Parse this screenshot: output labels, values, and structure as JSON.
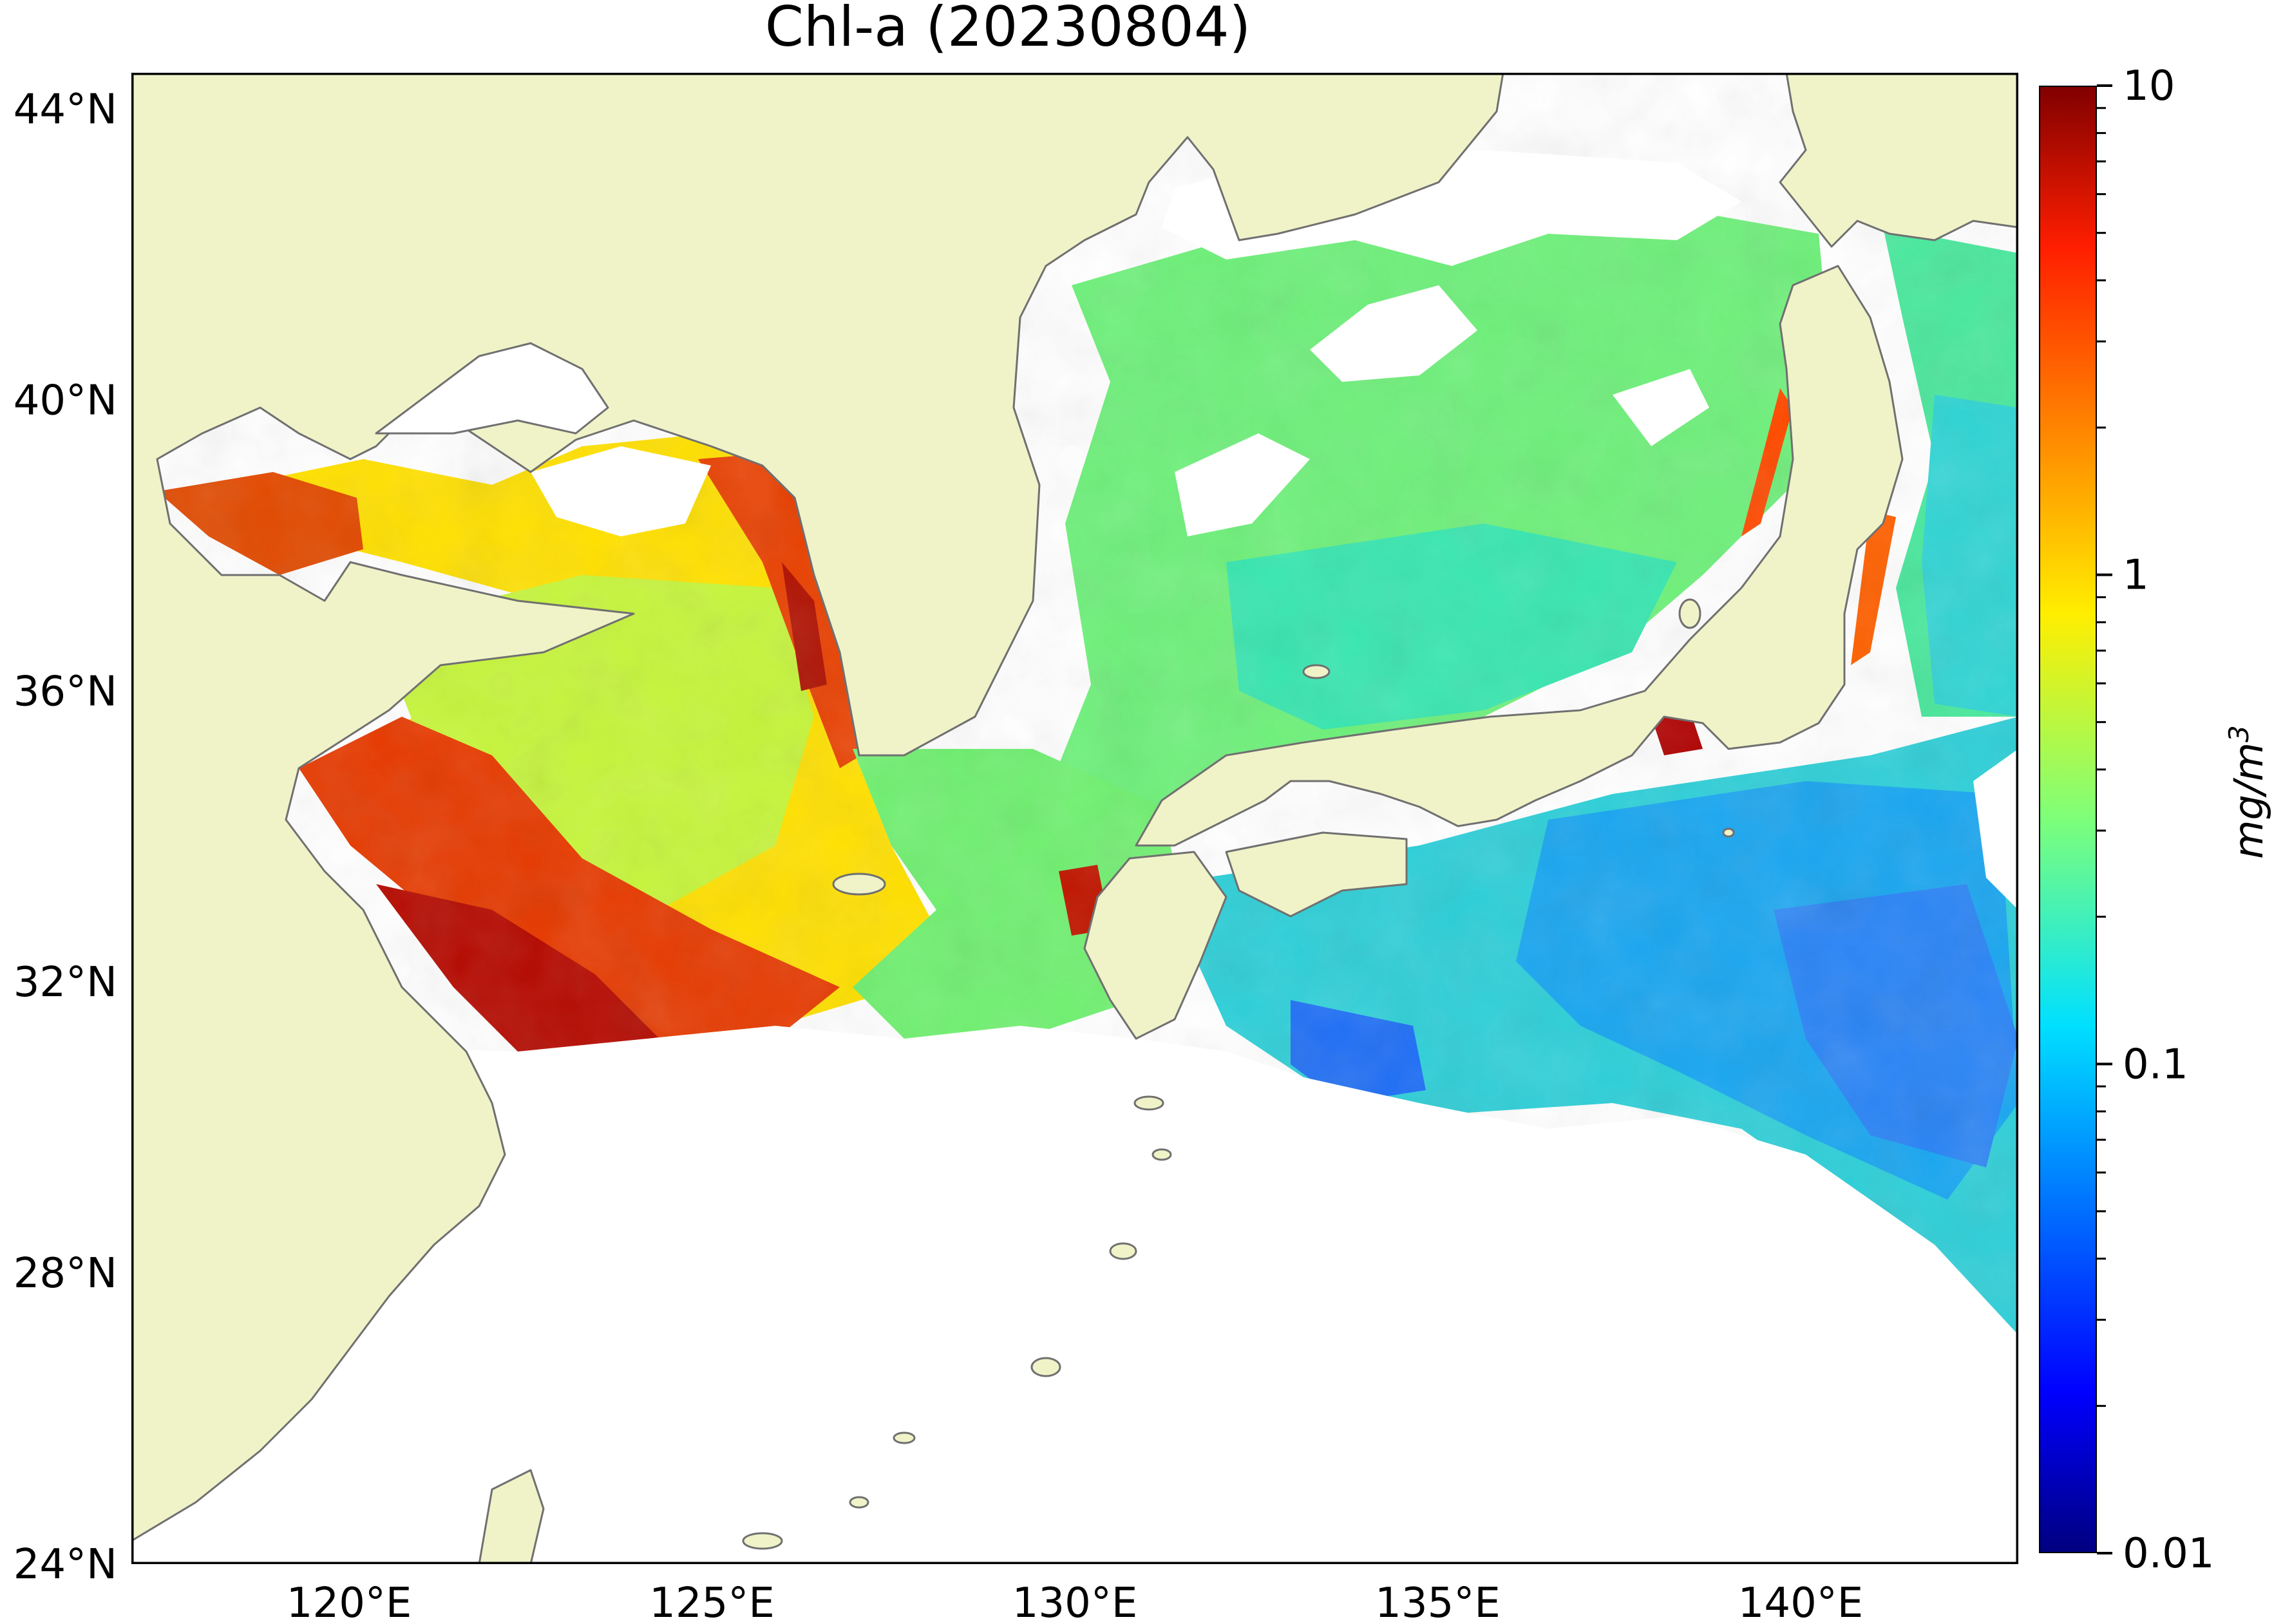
{
  "title": "Chl-a (20230804)",
  "map": {
    "lon_range": [
      117,
      143
    ],
    "lat_range": [
      24,
      44.5
    ],
    "lat_ticks": [
      {
        "value": 44,
        "label": "44°N"
      },
      {
        "value": 40,
        "label": "40°N"
      },
      {
        "value": 36,
        "label": "36°N"
      },
      {
        "value": 32,
        "label": "32°N"
      },
      {
        "value": 28,
        "label": "28°N"
      },
      {
        "value": 24,
        "label": "24°N"
      }
    ],
    "lon_ticks": [
      {
        "value": 120,
        "label": "120°E"
      },
      {
        "value": 125,
        "label": "125°E"
      },
      {
        "value": 130,
        "label": "130°E"
      },
      {
        "value": 135,
        "label": "135°E"
      },
      {
        "value": 140,
        "label": "140°E"
      }
    ],
    "colors": {
      "land": "#f0f3c8",
      "coastline": "#707070",
      "no_data": "#ffffff"
    }
  },
  "colorbar": {
    "colormap": "jet",
    "scale": "log",
    "range": [
      0.01,
      10
    ],
    "tick_labels": [
      "10",
      "1",
      "0.1",
      "0.01"
    ],
    "unit": {
      "base": "mg/m",
      "exponent": "3"
    }
  }
}
